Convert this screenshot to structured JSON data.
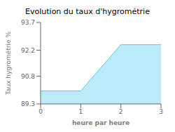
{
  "chart_data": {
    "type": "area",
    "title": "Evolution du taux d'hygrométrie",
    "xlabel": "heure par heure",
    "ylabel": "Taux hygrométrie %",
    "x": [
      0,
      1,
      2,
      3
    ],
    "values": [
      90.0,
      90.0,
      92.5,
      92.5
    ],
    "color": "#55ccee",
    "xlim": [
      0,
      3
    ],
    "ylim": [
      89.3,
      93.7
    ],
    "xticks": [
      0,
      1,
      2,
      3
    ],
    "yticks": [
      89.3,
      90.8,
      92.2,
      93.7
    ],
    "grid": false
  }
}
